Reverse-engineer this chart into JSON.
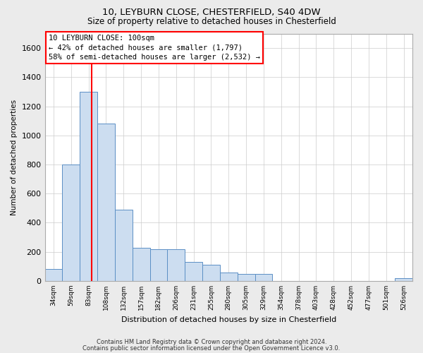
{
  "title_line1": "10, LEYBURN CLOSE, CHESTERFIELD, S40 4DW",
  "title_line2": "Size of property relative to detached houses in Chesterfield",
  "xlabel": "Distribution of detached houses by size in Chesterfield",
  "ylabel": "Number of detached properties",
  "categories": [
    "34sqm",
    "59sqm",
    "83sqm",
    "108sqm",
    "132sqm",
    "157sqm",
    "182sqm",
    "206sqm",
    "231sqm",
    "255sqm",
    "280sqm",
    "305sqm",
    "329sqm",
    "354sqm",
    "378sqm",
    "403sqm",
    "428sqm",
    "452sqm",
    "477sqm",
    "501sqm",
    "526sqm"
  ],
  "values": [
    80,
    800,
    1300,
    1080,
    490,
    230,
    220,
    220,
    130,
    110,
    60,
    50,
    50,
    0,
    0,
    0,
    0,
    0,
    0,
    0,
    20
  ],
  "bar_color": "#ccddf0",
  "bar_edge_color": "#5b8fc5",
  "vline_x": 2.18,
  "vline_color": "red",
  "annotation_line1": "10 LEYBURN CLOSE: 100sqm",
  "annotation_line2": "← 42% of detached houses are smaller (1,797)",
  "annotation_line3": "58% of semi-detached houses are larger (2,532) →",
  "ylim": [
    0,
    1700
  ],
  "yticks": [
    0,
    200,
    400,
    600,
    800,
    1000,
    1200,
    1400,
    1600
  ],
  "bg_color": "#ebebeb",
  "plot_bg_color": "#ffffff",
  "grid_color": "#cccccc",
  "footer_line1": "Contains HM Land Registry data © Crown copyright and database right 2024.",
  "footer_line2": "Contains public sector information licensed under the Open Government Licence v3.0."
}
